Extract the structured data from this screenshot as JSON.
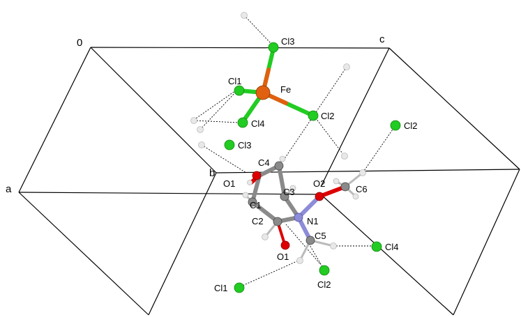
{
  "colors": {
    "cl": "#22cc22",
    "fe": "#e06010",
    "o": "#dd0000",
    "n": "#8c8cd8",
    "c": "#8a8a8a",
    "h": "#e8e8e8",
    "line": "#000000"
  },
  "axes": {
    "origin": "0",
    "a": "a",
    "b": "b",
    "c": "c"
  },
  "atom_labels": {
    "cl3_top": "Cl3",
    "cl1_top": "Cl1",
    "fe": "Fe",
    "cl4_top": "Cl4",
    "cl2_top": "Cl2",
    "cl2_right": "Cl2",
    "cl3_mid": "Cl3",
    "c4": "C4",
    "o1": "O1",
    "o2": "O2",
    "c6": "C6",
    "c3": "C3",
    "c1": "C1",
    "c2": "C2",
    "n1": "N1",
    "c5": "C5",
    "cl4_bot": "Cl4",
    "o1_bot": "O1",
    "cl2_bot": "Cl2",
    "cl1_bot": "Cl1"
  }
}
